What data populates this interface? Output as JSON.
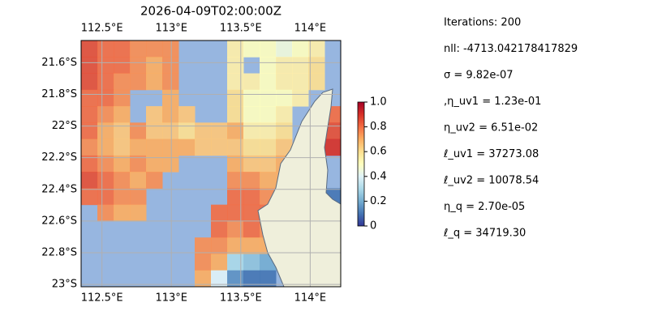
{
  "chart_data": {
    "type": "heatmap",
    "title": "2026-04-09T02:00:00Z",
    "xlim": [
      112.35,
      114.22
    ],
    "ylim": [
      -21.46,
      -23.015
    ],
    "xticks": [
      {
        "value": 112.5,
        "label": "112.5°E"
      },
      {
        "value": 113,
        "label": "113°E"
      },
      {
        "value": 113.5,
        "label": "113.5°E"
      },
      {
        "value": 114,
        "label": "114°E"
      }
    ],
    "yticks": [
      {
        "value": -21.6,
        "label": "21.6°S"
      },
      {
        "value": -21.8,
        "label": "21.8°S"
      },
      {
        "value": -22,
        "label": "22°S"
      },
      {
        "value": -22.2,
        "label": "22.2°S"
      },
      {
        "value": -22.4,
        "label": "22.4°S"
      },
      {
        "value": -22.6,
        "label": "22.6°S"
      },
      {
        "value": -22.8,
        "label": "22.8°S"
      },
      {
        "value": -23,
        "label": "23°S"
      }
    ],
    "grid": true,
    "values": [
      [
        0.85,
        0.8,
        0.8,
        0.75,
        0.75,
        0.75,
        null,
        null,
        null,
        0.55,
        0.5,
        0.5,
        0.45,
        0.5,
        0.55,
        null
      ],
      [
        0.85,
        0.8,
        0.8,
        0.75,
        0.7,
        0.75,
        null,
        null,
        null,
        0.55,
        null,
        0.5,
        0.55,
        0.55,
        0.6,
        null
      ],
      [
        0.85,
        0.8,
        0.75,
        0.75,
        0.7,
        0.75,
        null,
        null,
        null,
        0.55,
        0.55,
        0.5,
        0.55,
        0.55,
        0.6,
        null
      ],
      [
        0.8,
        0.8,
        0.75,
        null,
        null,
        0.7,
        null,
        null,
        null,
        0.6,
        0.5,
        0.5,
        0.5,
        0.55,
        null,
        null
      ],
      [
        0.8,
        0.75,
        0.7,
        null,
        0.65,
        0.7,
        0.65,
        null,
        null,
        0.6,
        0.5,
        0.5,
        0.55,
        null,
        null,
        0.8
      ],
      [
        0.8,
        0.7,
        0.65,
        0.75,
        0.65,
        0.65,
        0.6,
        0.65,
        0.65,
        0.7,
        0.55,
        0.55,
        0.6,
        null,
        null,
        0.85
      ],
      [
        0.75,
        0.7,
        0.65,
        0.7,
        0.7,
        0.7,
        0.7,
        0.65,
        0.65,
        0.65,
        0.6,
        0.6,
        0.65,
        null,
        null,
        0.9
      ],
      [
        0.8,
        0.75,
        0.7,
        0.75,
        0.7,
        0.7,
        null,
        null,
        null,
        0.7,
        0.65,
        0.65,
        0.7,
        null,
        null,
        null
      ],
      [
        0.85,
        0.8,
        0.75,
        0.7,
        0.75,
        null,
        null,
        null,
        null,
        0.75,
        0.75,
        0.7,
        0.7,
        null,
        null,
        null
      ],
      [
        0.8,
        0.8,
        0.75,
        0.75,
        null,
        null,
        null,
        null,
        null,
        0.8,
        0.8,
        0.75,
        0.75,
        null,
        null,
        0.1
      ],
      [
        null,
        0.75,
        0.7,
        0.7,
        null,
        null,
        null,
        null,
        0.8,
        0.8,
        0.8,
        0.8,
        null,
        null,
        null,
        null
      ],
      [
        null,
        null,
        null,
        null,
        null,
        null,
        null,
        null,
        0.8,
        0.75,
        0.8,
        0.75,
        null,
        null,
        null,
        null
      ],
      [
        null,
        null,
        null,
        null,
        null,
        null,
        null,
        0.75,
        0.75,
        0.7,
        0.7,
        0.7,
        null,
        null,
        null,
        null
      ],
      [
        null,
        null,
        null,
        null,
        null,
        null,
        null,
        0.75,
        0.7,
        0.3,
        0.25,
        0.2,
        null,
        null,
        null,
        null
      ],
      [
        null,
        null,
        null,
        null,
        null,
        null,
        null,
        0.7,
        0.4,
        0.15,
        0.1,
        0.1,
        null,
        null,
        null,
        null
      ]
    ],
    "colorbar": {
      "lim": [
        0,
        1
      ],
      "ticks": [
        0,
        0.2,
        0.4,
        0.6,
        0.8,
        {
          "value": 1,
          "label": "1.0"
        }
      ]
    }
  },
  "parameters": [
    "Iterations: 200",
    "nll: -4713.042178417829",
    "σ = 9.82e-07",
    ",η_uv1 = 1.23e-01",
    "η_uv2 = 6.51e-02",
    "ℓ_uv1 = 37273.08",
    "ℓ_uv2 = 10078.54",
    "η_q = 2.70e-05",
    "ℓ_q = 34719.30"
  ]
}
